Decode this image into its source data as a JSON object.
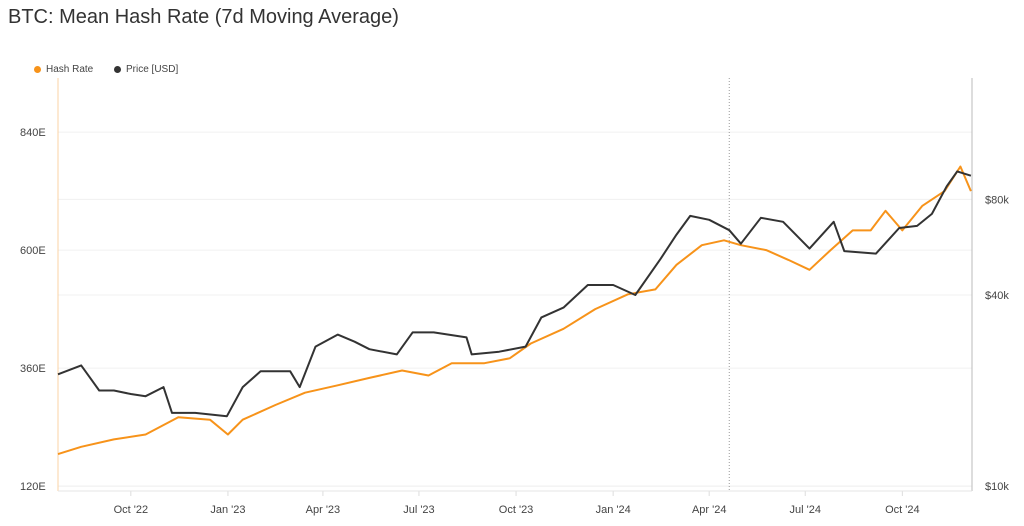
{
  "chart_data": {
    "type": "line",
    "title": "BTC: Mean Hash Rate (7d Moving Average)",
    "x_range": [
      "2022-07-24",
      "2024-12-06"
    ],
    "x_ticks": [
      {
        "date": "2022-10-01",
        "label": "Oct '22"
      },
      {
        "date": "2023-01-01",
        "label": "Jan '23"
      },
      {
        "date": "2023-04-01",
        "label": "Apr '23"
      },
      {
        "date": "2023-07-01",
        "label": "Jul '23"
      },
      {
        "date": "2023-10-01",
        "label": "Oct '23"
      },
      {
        "date": "2024-01-01",
        "label": "Jan '24"
      },
      {
        "date": "2024-04-01",
        "label": "Apr '24"
      },
      {
        "date": "2024-07-01",
        "label": "Jul '24"
      },
      {
        "date": "2024-10-01",
        "label": "Oct '24"
      }
    ],
    "left_axis": {
      "scale": "linear",
      "ylim": [
        110,
        950
      ],
      "ticks": [
        {
          "v": 120,
          "label": "120E"
        },
        {
          "v": 360,
          "label": "360E"
        },
        {
          "v": 600,
          "label": "600E"
        },
        {
          "v": 840,
          "label": "840E"
        }
      ]
    },
    "right_axis": {
      "scale": "log",
      "ylim": [
        9650,
        193000
      ],
      "ticks": [
        {
          "v": 10000,
          "label": "$10k"
        },
        {
          "v": 40000,
          "label": "$40k"
        },
        {
          "v": 80000,
          "label": "$80k"
        }
      ]
    },
    "marker_line": "2024-04-20",
    "grid": true,
    "legend_position": "top-left",
    "series": [
      {
        "name": "Hash Rate",
        "axis": "left",
        "color": "#f7931a",
        "points": [
          [
            "2022-07-24",
            185
          ],
          [
            "2022-08-15",
            200
          ],
          [
            "2022-09-15",
            215
          ],
          [
            "2022-10-15",
            225
          ],
          [
            "2022-11-15",
            260
          ],
          [
            "2022-12-15",
            255
          ],
          [
            "2023-01-01",
            225
          ],
          [
            "2023-01-15",
            255
          ],
          [
            "2023-02-15",
            285
          ],
          [
            "2023-03-15",
            310
          ],
          [
            "2023-04-15",
            325
          ],
          [
            "2023-05-15",
            340
          ],
          [
            "2023-06-15",
            355
          ],
          [
            "2023-07-10",
            345
          ],
          [
            "2023-08-01",
            370
          ],
          [
            "2023-09-01",
            370
          ],
          [
            "2023-09-25",
            380
          ],
          [
            "2023-10-15",
            410
          ],
          [
            "2023-11-15",
            440
          ],
          [
            "2023-12-15",
            480
          ],
          [
            "2024-01-15",
            510
          ],
          [
            "2024-02-10",
            520
          ],
          [
            "2024-03-01",
            570
          ],
          [
            "2024-03-25",
            610
          ],
          [
            "2024-04-15",
            620
          ],
          [
            "2024-05-01",
            610
          ],
          [
            "2024-05-25",
            600
          ],
          [
            "2024-06-15",
            580
          ],
          [
            "2024-07-05",
            560
          ],
          [
            "2024-07-25",
            600
          ],
          [
            "2024-08-15",
            640
          ],
          [
            "2024-09-01",
            640
          ],
          [
            "2024-09-15",
            680
          ],
          [
            "2024-10-01",
            640
          ],
          [
            "2024-10-20",
            690
          ],
          [
            "2024-11-10",
            720
          ],
          [
            "2024-11-25",
            770
          ],
          [
            "2024-12-05",
            720
          ]
        ]
      },
      {
        "name": "Price [USD]",
        "axis": "right",
        "color": "#333333",
        "points": [
          [
            "2022-07-24",
            22500
          ],
          [
            "2022-08-15",
            24000
          ],
          [
            "2022-09-01",
            20000
          ],
          [
            "2022-09-15",
            20000
          ],
          [
            "2022-10-01",
            19500
          ],
          [
            "2022-10-15",
            19200
          ],
          [
            "2022-11-01",
            20500
          ],
          [
            "2022-11-09",
            17000
          ],
          [
            "2022-12-01",
            17000
          ],
          [
            "2022-12-31",
            16600
          ],
          [
            "2023-01-15",
            20500
          ],
          [
            "2023-02-01",
            23000
          ],
          [
            "2023-03-01",
            23000
          ],
          [
            "2023-03-10",
            20500
          ],
          [
            "2023-03-25",
            27500
          ],
          [
            "2023-04-15",
            30000
          ],
          [
            "2023-05-01",
            28500
          ],
          [
            "2023-05-15",
            27000
          ],
          [
            "2023-06-10",
            26000
          ],
          [
            "2023-06-25",
            30500
          ],
          [
            "2023-07-15",
            30500
          ],
          [
            "2023-08-15",
            29400
          ],
          [
            "2023-08-20",
            26000
          ],
          [
            "2023-09-15",
            26500
          ],
          [
            "2023-10-10",
            27500
          ],
          [
            "2023-10-25",
            34000
          ],
          [
            "2023-11-15",
            36500
          ],
          [
            "2023-12-08",
            43000
          ],
          [
            "2024-01-01",
            43000
          ],
          [
            "2024-01-22",
            40000
          ],
          [
            "2024-02-15",
            52000
          ],
          [
            "2024-03-01",
            62000
          ],
          [
            "2024-03-14",
            71000
          ],
          [
            "2024-04-01",
            69000
          ],
          [
            "2024-04-20",
            64000
          ],
          [
            "2024-05-01",
            58000
          ],
          [
            "2024-05-20",
            70000
          ],
          [
            "2024-06-10",
            68000
          ],
          [
            "2024-07-05",
            56000
          ],
          [
            "2024-07-28",
            68000
          ],
          [
            "2024-08-07",
            55000
          ],
          [
            "2024-09-06",
            54000
          ],
          [
            "2024-09-28",
            65000
          ],
          [
            "2024-10-15",
            66000
          ],
          [
            "2024-10-29",
            72000
          ],
          [
            "2024-11-12",
            88000
          ],
          [
            "2024-11-22",
            98000
          ],
          [
            "2024-12-05",
            95000
          ]
        ]
      }
    ]
  }
}
